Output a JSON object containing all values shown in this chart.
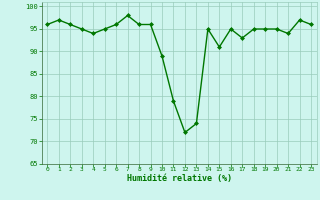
{
  "x": [
    0,
    1,
    2,
    3,
    4,
    5,
    6,
    7,
    8,
    9,
    10,
    11,
    12,
    13,
    14,
    15,
    16,
    17,
    18,
    19,
    20,
    21,
    22,
    23
  ],
  "y": [
    96,
    97,
    96,
    95,
    94,
    95,
    96,
    98,
    96,
    96,
    89,
    79,
    72,
    74,
    95,
    91,
    95,
    93,
    95,
    95,
    95,
    94,
    97,
    96
  ],
  "ylim": [
    65,
    101
  ],
  "yticks": [
    65,
    70,
    75,
    80,
    85,
    90,
    95,
    100
  ],
  "xticks": [
    0,
    1,
    2,
    3,
    4,
    5,
    6,
    7,
    8,
    9,
    10,
    11,
    12,
    13,
    14,
    15,
    16,
    17,
    18,
    19,
    20,
    21,
    22,
    23
  ],
  "xlabel": "Humidité relative (%)",
  "line_color": "#007700",
  "marker": "D",
  "marker_size": 2.0,
  "background_color": "#cef5ee",
  "grid_color": "#99ccbb",
  "tick_color": "#007700",
  "label_color": "#007700",
  "linewidth": 1.0
}
